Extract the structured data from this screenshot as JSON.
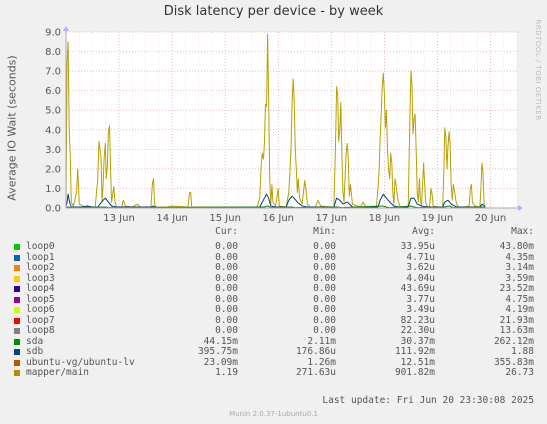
{
  "title": "Disk latency per device - by week",
  "ylabel": "Average IO Wait (seconds)",
  "watermark": "RRDTOOL / TOBI OETIKER",
  "colors": {
    "background": "#f0f0f0",
    "plot_bg": "#ffffff",
    "grid": "#e8a0a0",
    "axis": "#aaaaaa",
    "mapper": "#b8a000",
    "sdb": "#003e8a",
    "sda": "#1a7a1a",
    "lv": "#ff8000"
  },
  "chart_data": {
    "type": "line",
    "title": "Disk latency per device - by week",
    "ylabel": "Average IO Wait (seconds)",
    "ylim": [
      0,
      9.0
    ],
    "yticks": [
      0.0,
      1.0,
      2.0,
      3.0,
      4.0,
      5.0,
      6.0,
      7.0,
      8.0,
      9.0
    ],
    "ytick_labels": [
      "0.0",
      "1.0",
      "2.0",
      "3.0",
      "4.0",
      "5.0",
      "6.0",
      "7.0",
      "8.0",
      "9.0"
    ],
    "xlim": [
      12.0,
      20.5
    ],
    "xticks": [
      13,
      14,
      15,
      16,
      17,
      18,
      19,
      20
    ],
    "xtick_labels": [
      "13 Jun",
      "14 Jun",
      "15 Jun",
      "16 Jun",
      "17 Jun",
      "18 Jun",
      "19 Jun",
      "20 Jun"
    ],
    "grid": true,
    "series": [
      {
        "name": "mapper/main",
        "color": "#b8a000",
        "points": [
          [
            12.0,
            0.1
          ],
          [
            12.02,
            7.5
          ],
          [
            12.04,
            8.5
          ],
          [
            12.06,
            4.0
          ],
          [
            12.08,
            2.8
          ],
          [
            12.1,
            0.3
          ],
          [
            12.14,
            0.1
          ],
          [
            12.2,
            0.8
          ],
          [
            12.22,
            2.0
          ],
          [
            12.25,
            0.2
          ],
          [
            12.35,
            0.05
          ],
          [
            12.55,
            0.05
          ],
          [
            12.6,
            1.5
          ],
          [
            12.62,
            3.4
          ],
          [
            12.64,
            3.0
          ],
          [
            12.66,
            2.6
          ],
          [
            12.68,
            0.3
          ],
          [
            12.7,
            1.2
          ],
          [
            12.72,
            2.6
          ],
          [
            12.74,
            3.3
          ],
          [
            12.76,
            1.5
          ],
          [
            12.78,
            2.2
          ],
          [
            12.8,
            3.9
          ],
          [
            12.82,
            4.2
          ],
          [
            12.84,
            1.9
          ],
          [
            12.86,
            0.3
          ],
          [
            12.9,
            1.1
          ],
          [
            12.92,
            0.4
          ],
          [
            12.95,
            0.05
          ],
          [
            13.05,
            0.05
          ],
          [
            13.08,
            0.4
          ],
          [
            13.12,
            0.1
          ],
          [
            13.25,
            0.05
          ],
          [
            13.35,
            0.2
          ],
          [
            13.4,
            0.05
          ],
          [
            13.6,
            0.05
          ],
          [
            13.63,
            1.3
          ],
          [
            13.65,
            1.5
          ],
          [
            13.67,
            0.2
          ],
          [
            13.7,
            0.05
          ],
          [
            13.9,
            0.05
          ],
          [
            14.0,
            0.1
          ],
          [
            14.3,
            0.05
          ],
          [
            14.33,
            0.8
          ],
          [
            14.35,
            0.8
          ],
          [
            14.37,
            0.05
          ],
          [
            15.0,
            0.05
          ],
          [
            15.5,
            0.05
          ],
          [
            15.6,
            0.05
          ],
          [
            15.65,
            0.5
          ],
          [
            15.68,
            2.3
          ],
          [
            15.7,
            2.8
          ],
          [
            15.72,
            2.5
          ],
          [
            15.74,
            3.3
          ],
          [
            15.76,
            5.3
          ],
          [
            15.78,
            5.2
          ],
          [
            15.8,
            8.9
          ],
          [
            15.82,
            5.5
          ],
          [
            15.84,
            1.5
          ],
          [
            15.86,
            0.2
          ],
          [
            15.88,
            1.2
          ],
          [
            15.9,
            0.3
          ],
          [
            15.95,
            0.1
          ],
          [
            16.0,
            1.0
          ],
          [
            16.02,
            0.1
          ],
          [
            16.15,
            0.05
          ],
          [
            16.2,
            0.8
          ],
          [
            16.22,
            1.8
          ],
          [
            16.24,
            3.0
          ],
          [
            16.26,
            5.2
          ],
          [
            16.28,
            6.6
          ],
          [
            16.3,
            5.5
          ],
          [
            16.32,
            3.1
          ],
          [
            16.34,
            2.0
          ],
          [
            16.36,
            0.8
          ],
          [
            16.38,
            1.5
          ],
          [
            16.4,
            0.5
          ],
          [
            16.45,
            0.2
          ],
          [
            16.5,
            1.4
          ],
          [
            16.52,
            1.0
          ],
          [
            16.55,
            0.2
          ],
          [
            16.6,
            0.05
          ],
          [
            16.7,
            0.05
          ],
          [
            16.75,
            0.4
          ],
          [
            16.8,
            0.1
          ],
          [
            17.0,
            0.05
          ],
          [
            17.05,
            0.05
          ],
          [
            17.08,
            3.2
          ],
          [
            17.1,
            6.2
          ],
          [
            17.12,
            5.8
          ],
          [
            17.14,
            3.4
          ],
          [
            17.16,
            4.0
          ],
          [
            17.18,
            5.4
          ],
          [
            17.2,
            2.7
          ],
          [
            17.22,
            0.8
          ],
          [
            17.24,
            0.3
          ],
          [
            17.28,
            2.8
          ],
          [
            17.3,
            3.3
          ],
          [
            17.32,
            2.5
          ],
          [
            17.34,
            0.6
          ],
          [
            17.36,
            1.2
          ],
          [
            17.4,
            0.2
          ],
          [
            17.5,
            0.1
          ],
          [
            17.55,
            0.05
          ],
          [
            17.6,
            0.3
          ],
          [
            17.65,
            0.05
          ],
          [
            17.85,
            0.05
          ],
          [
            17.88,
            1.0
          ],
          [
            17.9,
            1.8
          ],
          [
            17.92,
            3.5
          ],
          [
            17.94,
            4.8
          ],
          [
            17.96,
            6.2
          ],
          [
            17.98,
            6.9
          ],
          [
            18.0,
            5.8
          ],
          [
            18.02,
            4.1
          ],
          [
            18.04,
            5.0
          ],
          [
            18.06,
            3.0
          ],
          [
            18.08,
            2.0
          ],
          [
            18.1,
            1.5
          ],
          [
            18.12,
            2.8
          ],
          [
            18.14,
            2.3
          ],
          [
            18.16,
            0.8
          ],
          [
            18.18,
            0.2
          ],
          [
            18.2,
            1.5
          ],
          [
            18.22,
            1.2
          ],
          [
            18.25,
            0.5
          ],
          [
            18.28,
            0.2
          ],
          [
            18.3,
            0.05
          ],
          [
            18.4,
            0.05
          ],
          [
            18.45,
            0.05
          ],
          [
            18.48,
            4.3
          ],
          [
            18.5,
            7.0
          ],
          [
            18.52,
            6.4
          ],
          [
            18.54,
            3.8
          ],
          [
            18.56,
            4.6
          ],
          [
            18.58,
            4.8
          ],
          [
            18.6,
            2.9
          ],
          [
            18.62,
            0.8
          ],
          [
            18.64,
            0.3
          ],
          [
            18.66,
            1.5
          ],
          [
            18.68,
            0.4
          ],
          [
            18.7,
            0.1
          ],
          [
            18.74,
            2.3
          ],
          [
            18.76,
            1.2
          ],
          [
            18.78,
            0.3
          ],
          [
            18.8,
            0.1
          ],
          [
            18.85,
            0.05
          ],
          [
            18.88,
            1.0
          ],
          [
            18.9,
            0.7
          ],
          [
            18.92,
            0.1
          ],
          [
            19.0,
            0.05
          ],
          [
            19.1,
            0.05
          ],
          [
            19.12,
            1.8
          ],
          [
            19.14,
            4.1
          ],
          [
            19.16,
            3.6
          ],
          [
            19.18,
            2.0
          ],
          [
            19.2,
            3.2
          ],
          [
            19.22,
            3.9
          ],
          [
            19.24,
            3.2
          ],
          [
            19.26,
            1.2
          ],
          [
            19.28,
            0.4
          ],
          [
            19.3,
            1.2
          ],
          [
            19.32,
            0.9
          ],
          [
            19.36,
            0.2
          ],
          [
            19.4,
            0.05
          ],
          [
            19.5,
            0.05
          ],
          [
            19.6,
            0.1
          ],
          [
            19.62,
            1.0
          ],
          [
            19.64,
            1.2
          ],
          [
            19.66,
            0.3
          ],
          [
            19.7,
            0.1
          ],
          [
            19.8,
            0.05
          ],
          [
            19.82,
            1.0
          ],
          [
            19.84,
            2.3
          ],
          [
            19.86,
            1.8
          ],
          [
            19.88,
            0.2
          ],
          [
            19.9,
            0.05
          ]
        ]
      },
      {
        "name": "sdb",
        "color": "#003e8a",
        "points": [
          [
            12.0,
            0.05
          ],
          [
            12.02,
            0.3
          ],
          [
            12.04,
            0.7
          ],
          [
            12.06,
            0.4
          ],
          [
            12.08,
            0.2
          ],
          [
            12.1,
            0.05
          ],
          [
            12.3,
            0.05
          ],
          [
            12.4,
            0.1
          ],
          [
            12.5,
            0.05
          ],
          [
            12.6,
            0.05
          ],
          [
            12.64,
            0.2
          ],
          [
            12.7,
            0.4
          ],
          [
            12.74,
            0.5
          ],
          [
            12.8,
            0.3
          ],
          [
            12.86,
            0.1
          ],
          [
            12.95,
            0.05
          ],
          [
            13.6,
            0.05
          ],
          [
            13.65,
            0.1
          ],
          [
            13.7,
            0.02
          ],
          [
            15.5,
            0.02
          ],
          [
            15.65,
            0.05
          ],
          [
            15.7,
            0.3
          ],
          [
            15.74,
            0.5
          ],
          [
            15.78,
            0.7
          ],
          [
            15.82,
            0.5
          ],
          [
            15.86,
            0.1
          ],
          [
            15.95,
            0.05
          ],
          [
            16.15,
            0.05
          ],
          [
            16.2,
            0.4
          ],
          [
            16.26,
            0.6
          ],
          [
            16.3,
            0.5
          ],
          [
            16.36,
            0.3
          ],
          [
            16.45,
            0.1
          ],
          [
            16.55,
            0.05
          ],
          [
            17.05,
            0.05
          ],
          [
            17.1,
            0.5
          ],
          [
            17.16,
            0.4
          ],
          [
            17.22,
            0.2
          ],
          [
            17.3,
            0.3
          ],
          [
            17.4,
            0.05
          ],
          [
            17.88,
            0.05
          ],
          [
            17.92,
            0.4
          ],
          [
            17.98,
            0.7
          ],
          [
            18.04,
            0.5
          ],
          [
            18.1,
            0.3
          ],
          [
            18.18,
            0.1
          ],
          [
            18.28,
            0.05
          ],
          [
            18.45,
            0.05
          ],
          [
            18.5,
            0.5
          ],
          [
            18.56,
            0.5
          ],
          [
            18.62,
            0.2
          ],
          [
            18.7,
            0.1
          ],
          [
            18.8,
            0.05
          ],
          [
            19.1,
            0.05
          ],
          [
            19.14,
            0.3
          ],
          [
            19.2,
            0.4
          ],
          [
            19.26,
            0.2
          ],
          [
            19.36,
            0.05
          ],
          [
            19.8,
            0.05
          ],
          [
            19.84,
            0.2
          ],
          [
            19.9,
            0.05
          ]
        ]
      },
      {
        "name": "sda",
        "color": "#1a7a1a",
        "points": [
          [
            12.0,
            0.02
          ],
          [
            12.04,
            0.05
          ],
          [
            12.1,
            0.02
          ],
          [
            12.74,
            0.05
          ],
          [
            12.8,
            0.02
          ],
          [
            15.74,
            0.05
          ],
          [
            15.8,
            0.1
          ],
          [
            15.86,
            0.02
          ],
          [
            16.26,
            0.05
          ],
          [
            16.32,
            0.02
          ],
          [
            17.1,
            0.05
          ],
          [
            17.2,
            0.02
          ],
          [
            17.96,
            0.1
          ],
          [
            18.04,
            0.05
          ],
          [
            18.1,
            0.02
          ],
          [
            18.5,
            0.1
          ],
          [
            18.56,
            0.05
          ],
          [
            18.64,
            0.02
          ],
          [
            19.14,
            0.05
          ],
          [
            19.22,
            0.1
          ],
          [
            19.3,
            0.02
          ],
          [
            19.84,
            0.05
          ],
          [
            19.9,
            0.02
          ]
        ]
      }
    ]
  },
  "legend": {
    "headers": {
      "cur": "Cur:",
      "min": "Min:",
      "avg": "Avg:",
      "max": "Max:"
    },
    "rows": [
      {
        "name": "loop0",
        "color": "#00cc00",
        "cur": "0.00",
        "min": "0.00",
        "avg": "33.95u",
        "max": "43.80m"
      },
      {
        "name": "loop1",
        "color": "#0066b3",
        "cur": "0.00",
        "min": "0.00",
        "avg": "4.71u",
        "max": "4.35m"
      },
      {
        "name": "loop2",
        "color": "#ff8000",
        "cur": "0.00",
        "min": "0.00",
        "avg": "3.62u",
        "max": "3.14m"
      },
      {
        "name": "loop3",
        "color": "#ffcc00",
        "cur": "0.00",
        "min": "0.00",
        "avg": "4.04u",
        "max": "3.59m"
      },
      {
        "name": "loop4",
        "color": "#330099",
        "cur": "0.00",
        "min": "0.00",
        "avg": "43.69u",
        "max": "23.52m"
      },
      {
        "name": "loop5",
        "color": "#990099",
        "cur": "0.00",
        "min": "0.00",
        "avg": "3.77u",
        "max": "4.75m"
      },
      {
        "name": "loop6",
        "color": "#ccff00",
        "cur": "0.00",
        "min": "0.00",
        "avg": "3.49u",
        "max": "4.19m"
      },
      {
        "name": "loop7",
        "color": "#ff0000",
        "cur": "0.00",
        "min": "0.00",
        "avg": "82.23u",
        "max": "21.93m"
      },
      {
        "name": "loop8",
        "color": "#808080",
        "cur": "0.00",
        "min": "0.00",
        "avg": "22.30u",
        "max": "13.63m"
      },
      {
        "name": "sda",
        "color": "#008f00",
        "cur": "44.15m",
        "min": "2.11m",
        "avg": "30.37m",
        "max": "262.12m"
      },
      {
        "name": "sdb",
        "color": "#00487d",
        "cur": "395.75m",
        "min": "176.86u",
        "avg": "111.92m",
        "max": "1.88"
      },
      {
        "name": "ubuntu-vg/ubuntu-lv",
        "color": "#b35a00",
        "cur": "23.09m",
        "min": "1.26m",
        "avg": "12.51m",
        "max": "355.83m"
      },
      {
        "name": "mapper/main",
        "color": "#b38f00",
        "cur": "1.19",
        "min": "271.63u",
        "avg": "901.82m",
        "max": "26.73"
      }
    ]
  },
  "last_update": "Last update: Fri Jun 20 23:30:08 2025",
  "footer": "Munin 2.0.37-1ubuntu0.1"
}
